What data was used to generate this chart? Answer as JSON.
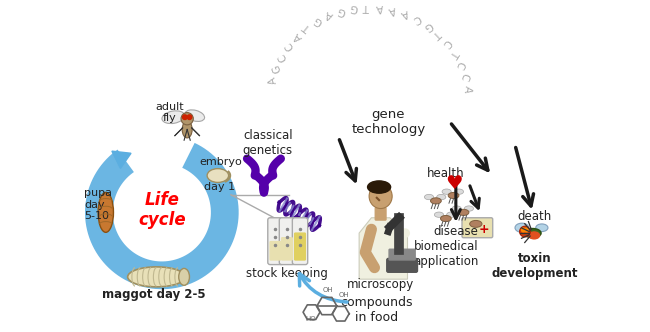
{
  "background_color": "#ffffff",
  "labels": {
    "adult_fly": "adult\nfly",
    "pupa": "pupa\nday\n5-10",
    "maggot": "maggot day 2-5",
    "embryo": "embryo",
    "day1": "day 1",
    "life_cycle": "Life\ncycle",
    "classical_genetics": "classical\ngenetics",
    "gene_technology": "gene\ntechnology",
    "microscopy": "microscopy",
    "stock_keeping": "stock keeping",
    "compounds_in_food": "compounds\nin food",
    "health": "health",
    "disease": "disease",
    "biomedical_application": "biomedical\napplication",
    "toxin_development": "toxin\ndevelopment",
    "death": "death"
  },
  "dna_sequence": "AGCCATGAGGTAAACGTCTCCA",
  "life_cycle_color": "#5baee0",
  "life_cycle_text_color": "#ff0000",
  "dark_arrow_color": "#1a1a1a",
  "classical_genetics_color": "#5500aa",
  "dna_color": "#3a0088",
  "dna_seq_color": "#aaaaaa",
  "figsize": [
    6.5,
    3.32
  ],
  "dpi": 100
}
